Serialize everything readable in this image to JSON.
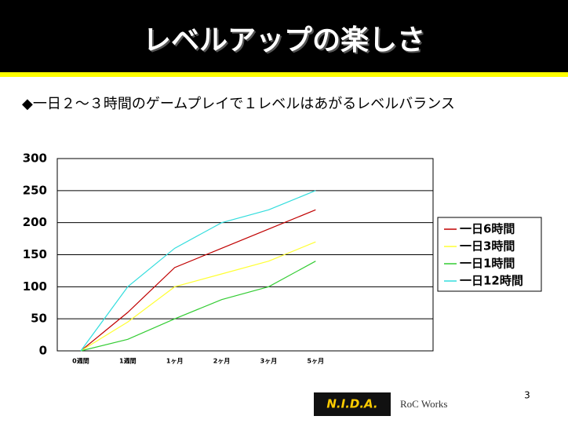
{
  "chart_data": {
    "type": "line",
    "title": "レベルアップの楽しさ",
    "subtitle": "◆一日２～３時間のゲームプレイで１レベルはあがるレベルバランス",
    "categories": [
      "0週間",
      "1週間",
      "1ヶ月",
      "2ヶ月",
      "3ヶ月",
      "5ヶ月",
      null,
      null
    ],
    "series": [
      {
        "name": "一日6時間",
        "color": "#c00000",
        "values": [
          0,
          60,
          130,
          160,
          190,
          220,
          null,
          null
        ]
      },
      {
        "name": "一日3時間",
        "color": "#ffff33",
        "values": [
          0,
          45,
          100,
          120,
          140,
          170,
          null,
          null
        ]
      },
      {
        "name": "一日1時間",
        "color": "#33cc33",
        "values": [
          0,
          18,
          50,
          80,
          100,
          140,
          null,
          null
        ]
      },
      {
        "name": "一日12時間",
        "color": "#33dddd",
        "values": [
          0,
          100,
          160,
          200,
          220,
          250,
          null,
          null
        ]
      }
    ],
    "ylim": [
      0,
      300
    ],
    "yticks": [
      0,
      50,
      100,
      150,
      200,
      250,
      300
    ],
    "grid": true,
    "legend": "right"
  },
  "footer": {
    "page_number": "3",
    "logos": [
      "N.I.D.A.",
      "RoC Works"
    ]
  }
}
